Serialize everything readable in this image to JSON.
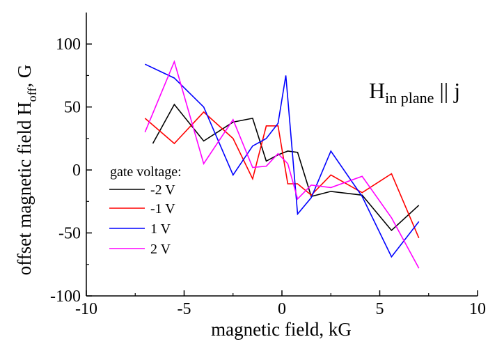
{
  "chart_data": {
    "type": "line",
    "title": "",
    "xlabel": "magnetic field, kG",
    "ylabel_main": "offset magnetic field H",
    "ylabel_sub": "off",
    "ylabel_suffix": ", G",
    "xlim": [
      -10,
      10
    ],
    "ylim": [
      -100,
      125
    ],
    "xticks": [
      -10,
      -5,
      0,
      5,
      10
    ],
    "yticks": [
      -100,
      -50,
      0,
      50,
      100
    ],
    "grid": false,
    "annotation": {
      "main": "H",
      "sub": "in plane",
      "rest": " || j"
    },
    "legend": {
      "title": "gate voltage:",
      "placement": "left-middle"
    },
    "series": [
      {
        "name": "-2 V",
        "color": "#000000",
        "x": [
          -6.6,
          -5.5,
          -4.0,
          -2.5,
          -1.5,
          -0.8,
          -0.2,
          0.3,
          0.8,
          1.5,
          2.5,
          4.1,
          5.6,
          7.0
        ],
        "y": [
          21,
          52,
          23,
          38,
          41,
          7,
          12,
          15,
          14,
          -21,
          -17,
          -20,
          -48,
          -28
        ]
      },
      {
        "name": "-1 V",
        "color": "#ff0000",
        "x": [
          -7.0,
          -5.5,
          -4.0,
          -2.5,
          -1.5,
          -0.8,
          -0.2,
          0.3,
          0.8,
          1.5,
          2.5,
          4.1,
          5.6,
          7.0
        ],
        "y": [
          41,
          21,
          46,
          25,
          -7,
          35,
          35,
          -11,
          -11,
          -20,
          -4,
          -18,
          -3,
          -54
        ]
      },
      {
        "name": "1 V",
        "color": "#0000ff",
        "x": [
          -7.0,
          -5.5,
          -4.0,
          -2.5,
          -1.5,
          -0.8,
          -0.2,
          0.2,
          0.8,
          1.5,
          2.5,
          4.1,
          5.6,
          7.0
        ],
        "y": [
          84,
          73,
          50,
          -4,
          19,
          25,
          37,
          75,
          -35,
          -22,
          15,
          -21,
          -69,
          -41
        ]
      },
      {
        "name": "2 V",
        "color": "#ff00ff",
        "x": [
          -7.0,
          -5.5,
          -4.0,
          -2.5,
          -1.5,
          -0.8,
          -0.2,
          0.3,
          0.8,
          1.5,
          2.5,
          4.1,
          5.6,
          7.0
        ],
        "y": [
          30,
          86,
          5,
          40,
          2,
          3,
          13,
          5,
          -23,
          -12,
          -14,
          -5,
          -38,
          -78
        ]
      }
    ]
  }
}
